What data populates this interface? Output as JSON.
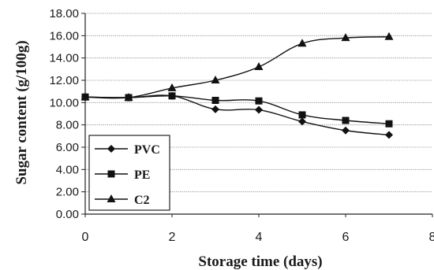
{
  "chart_data": {
    "type": "line",
    "title": "",
    "xlabel": "Storage time (days)",
    "ylabel": "Sugar content (g/100g)",
    "xlim": [
      0,
      8
    ],
    "ylim": [
      0,
      18
    ],
    "x_ticks": [
      "0",
      "2",
      "4",
      "6",
      "8"
    ],
    "y_ticks": [
      "0.00",
      "2.00",
      "4.00",
      "6.00",
      "8.00",
      "10.00",
      "12.00",
      "14.00",
      "16.00",
      "18.00"
    ],
    "grid": "horizontal",
    "legend_position": "bottom-left",
    "series": [
      {
        "name": "PVC",
        "marker": "diamond",
        "color": "#111111",
        "x": [
          0,
          1,
          2,
          3,
          4,
          5,
          6,
          7
        ],
        "y": [
          10.5,
          10.45,
          10.6,
          9.4,
          9.35,
          8.3,
          7.5,
          7.1
        ]
      },
      {
        "name": "PE",
        "marker": "square",
        "color": "#111111",
        "x": [
          0,
          1,
          2,
          3,
          4,
          5,
          6,
          7
        ],
        "y": [
          10.5,
          10.45,
          10.6,
          10.2,
          10.15,
          8.9,
          8.4,
          8.1
        ]
      },
      {
        "name": "C2",
        "marker": "triangle",
        "color": "#111111",
        "x": [
          0,
          1,
          2,
          3,
          4,
          5,
          6,
          7
        ],
        "y": [
          10.5,
          10.45,
          11.3,
          12.0,
          13.2,
          15.3,
          15.8,
          15.9
        ]
      }
    ]
  }
}
